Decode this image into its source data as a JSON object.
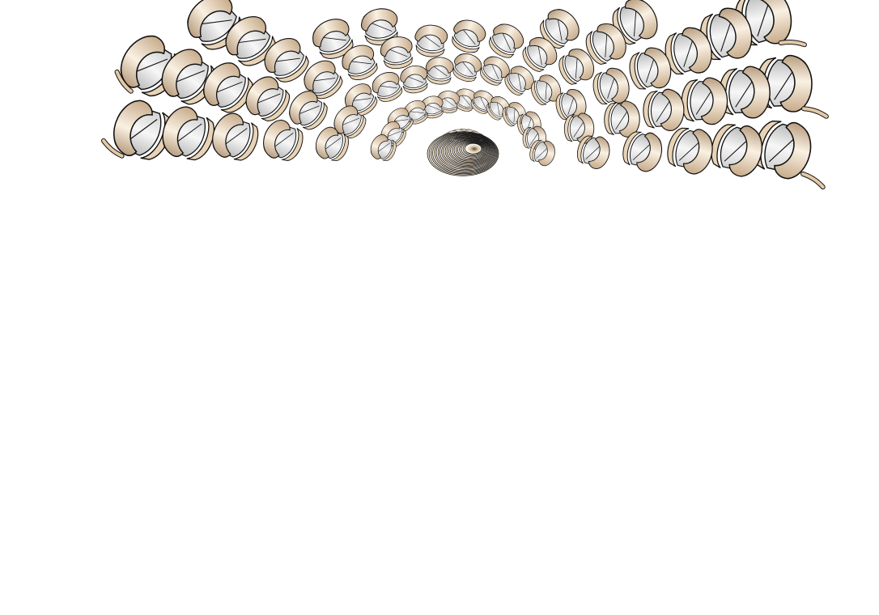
{
  "image": {
    "subject": "protein-helix-array-render",
    "background_color": "#ffffff",
    "ribbon_colors": {
      "front": "#e8d3b6",
      "highlight": "#faf1e3",
      "shade": "#b89d7f",
      "back": "#f4f4f4",
      "back_shade": "#bdbdbd",
      "outline": "#111111",
      "tail": "#e5c9a6"
    }
  }
}
